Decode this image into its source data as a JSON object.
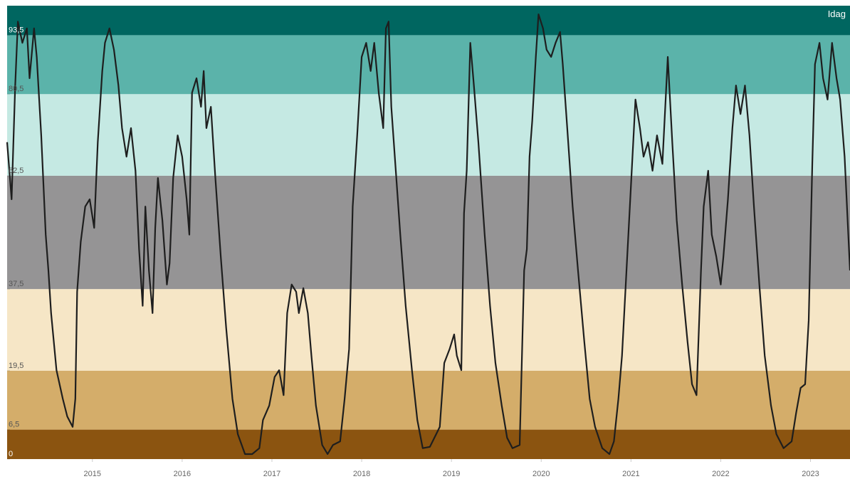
{
  "chart_data": {
    "type": "line",
    "annotation": "Idag",
    "color": "#1e1e1e",
    "bands": [
      {
        "from": 0,
        "to": 6.5,
        "color": "#8b5410"
      },
      {
        "from": 6.5,
        "to": 19.5,
        "color": "#d4ad6a"
      },
      {
        "from": 19.5,
        "to": 37.5,
        "color": "#f6e6c6"
      },
      {
        "from": 37.5,
        "to": 62.5,
        "color": "#959495"
      },
      {
        "from": 62.5,
        "to": 80.5,
        "color": "#c5e9e3"
      },
      {
        "from": 80.5,
        "to": 93.5,
        "color": "#5bb3aa"
      },
      {
        "from": 93.5,
        "to": 100,
        "color": "#006660"
      }
    ],
    "ylim": [
      0,
      100
    ],
    "yticks": [
      0,
      {
        "value": 6.5,
        "label": "6,5"
      },
      {
        "value": 19.5,
        "label": "19,5"
      },
      {
        "value": 37.5,
        "label": "37,5"
      },
      {
        "value": 62.5,
        "label": "62,5"
      },
      {
        "value": 80.5,
        "label": "80,5"
      },
      {
        "value": 93.5,
        "label": "93,5"
      }
    ],
    "xlim": [
      2014.05,
      2023.44
    ],
    "xticks": [
      2015,
      2016,
      2017,
      2018,
      2019,
      2020,
      2021,
      2022,
      2023
    ],
    "x": [
      2014.05,
      2014.1,
      2014.14,
      2014.17,
      2014.22,
      2014.27,
      2014.3,
      2014.35,
      2014.38,
      2014.43,
      2014.48,
      2014.51,
      2014.54,
      2014.6,
      2014.67,
      2014.72,
      2014.78,
      2014.81,
      2014.83,
      2014.87,
      2014.92,
      2014.97,
      2015.02,
      2015.06,
      2015.11,
      2015.14,
      2015.19,
      2015.24,
      2015.29,
      2015.33,
      2015.38,
      2015.43,
      2015.48,
      2015.52,
      2015.56,
      2015.59,
      2015.63,
      2015.67,
      2015.7,
      2015.73,
      2015.78,
      2015.83,
      2015.86,
      2015.9,
      2015.95,
      2016.0,
      2016.05,
      2016.08,
      2016.11,
      2016.16,
      2016.21,
      2016.24,
      2016.27,
      2016.32,
      2016.37,
      2016.43,
      2016.49,
      2016.56,
      2016.62,
      2016.7,
      2016.78,
      2016.86,
      2016.9,
      2016.97,
      2017.03,
      2017.08,
      2017.13,
      2017.17,
      2017.22,
      2017.27,
      2017.3,
      2017.35,
      2017.4,
      2017.44,
      2017.49,
      2017.56,
      2017.62,
      2017.68,
      2017.76,
      2017.81,
      2017.86,
      2017.9,
      2017.95,
      2018.0,
      2018.05,
      2018.1,
      2018.14,
      2018.19,
      2018.24,
      2018.27,
      2018.3,
      2018.33,
      2018.38,
      2018.43,
      2018.49,
      2018.56,
      2018.62,
      2018.68,
      2018.76,
      2018.83,
      2018.87,
      2018.92,
      2018.98,
      2019.03,
      2019.06,
      2019.11,
      2019.14,
      2019.17,
      2019.21,
      2019.25,
      2019.3,
      2019.37,
      2019.43,
      2019.49,
      2019.56,
      2019.62,
      2019.68,
      2019.76,
      2019.81,
      2019.84,
      2019.87,
      2019.9,
      2019.94,
      2019.97,
      2020.02,
      2020.06,
      2020.11,
      2020.16,
      2020.21,
      2020.24,
      2020.29,
      2020.35,
      2020.41,
      2020.48,
      2020.54,
      2020.6,
      2020.68,
      2020.76,
      2020.81,
      2020.86,
      2020.9,
      2020.95,
      2021.0,
      2021.05,
      2021.1,
      2021.14,
      2021.19,
      2021.24,
      2021.29,
      2021.35,
      2021.41,
      2021.46,
      2021.51,
      2021.57,
      2021.63,
      2021.68,
      2021.73,
      2021.78,
      2021.81,
      2021.86,
      2021.9,
      2021.95,
      2022.0,
      2022.03,
      2022.08,
      2022.13,
      2022.17,
      2022.22,
      2022.27,
      2022.32,
      2022.37,
      2022.43,
      2022.49,
      2022.56,
      2022.62,
      2022.7,
      2022.79,
      2022.84,
      2022.89,
      2022.94,
      2022.98,
      2023.02,
      2023.05,
      2023.1,
      2023.14,
      2023.19,
      2023.24,
      2023.29,
      2023.33,
      2023.38,
      2023.44
    ],
    "values": [
      69.9,
      57.3,
      82.4,
      96.5,
      91.8,
      95.0,
      84.0,
      95.0,
      88.7,
      71.4,
      49.5,
      41.6,
      32.2,
      19.6,
      13.3,
      9.4,
      7.1,
      13.3,
      36.9,
      47.9,
      55.7,
      57.3,
      51.0,
      69.9,
      85.6,
      91.8,
      95.0,
      90.3,
      82.4,
      73.0,
      66.7,
      73.0,
      63.6,
      46.3,
      33.8,
      55.7,
      41.6,
      32.2,
      51.0,
      62.0,
      52.6,
      38.5,
      43.2,
      62.0,
      71.4,
      66.7,
      57.3,
      49.5,
      80.8,
      84.0,
      77.7,
      85.6,
      73.0,
      77.7,
      62.0,
      44.7,
      29.0,
      13.3,
      5.5,
      1.1,
      1.1,
      2.4,
      8.6,
      11.8,
      18.1,
      19.6,
      14.1,
      32.2,
      38.5,
      36.9,
      32.2,
      37.7,
      32.2,
      22.8,
      11.8,
      3.1,
      1.1,
      3.1,
      3.9,
      13.3,
      24.3,
      55.7,
      71.4,
      88.7,
      91.8,
      85.6,
      91.8,
      80.8,
      73.0,
      95.0,
      96.5,
      77.7,
      63.6,
      49.5,
      33.8,
      19.6,
      8.6,
      2.4,
      2.7,
      5.5,
      7.1,
      21.2,
      24.3,
      27.5,
      22.8,
      19.6,
      54.2,
      63.6,
      91.8,
      82.4,
      69.9,
      49.5,
      33.8,
      21.2,
      11.8,
      4.7,
      2.4,
      3.1,
      41.6,
      46.3,
      66.7,
      74.6,
      88.7,
      98.1,
      95.0,
      90.3,
      88.7,
      91.8,
      94.2,
      87.1,
      73.0,
      55.7,
      41.6,
      25.9,
      13.3,
      7.1,
      2.4,
      1.1,
      3.9,
      13.3,
      22.8,
      41.6,
      60.4,
      79.3,
      73.0,
      66.7,
      69.9,
      63.6,
      71.4,
      65.1,
      88.7,
      69.9,
      52.6,
      38.5,
      25.9,
      16.5,
      14.1,
      41.6,
      55.7,
      63.6,
      49.5,
      44.7,
      38.5,
      44.7,
      57.3,
      73.0,
      82.4,
      76.1,
      82.4,
      71.4,
      55.7,
      38.5,
      22.8,
      11.8,
      5.5,
      2.4,
      3.9,
      10.2,
      15.7,
      16.5,
      30.6,
      65.1,
      87.1,
      91.8,
      84.0,
      79.3,
      91.8,
      84.0,
      79.3,
      66.7,
      41.6
    ]
  }
}
